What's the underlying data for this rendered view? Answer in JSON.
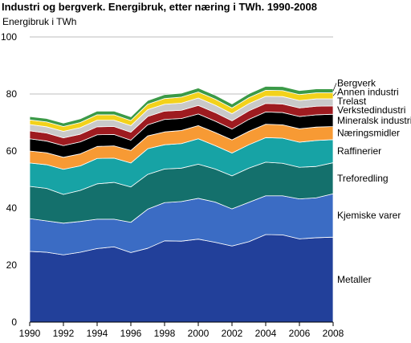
{
  "title": "Industri og bergverk. Energibruk, etter næring i TWh. 1990-2008",
  "chart_data": {
    "type": "area",
    "stacked": true,
    "title": "Industri og bergverk. Energibruk, etter næring i TWh. 1990-2008",
    "ylabel": "Energibruk i TWh",
    "xlabel": "",
    "ylim": [
      0,
      100
    ],
    "yticks": [
      "0",
      "20",
      "40",
      "60",
      "80",
      "100"
    ],
    "xticks": [
      "1990",
      "1992",
      "1994",
      "1996",
      "1998",
      "2000",
      "2002",
      "2004",
      "2006",
      "2008"
    ],
    "grid": true,
    "legend": "direct labels at right",
    "x": [
      1990,
      1991,
      1992,
      1993,
      1994,
      1995,
      1996,
      1997,
      1998,
      1999,
      2000,
      2001,
      2002,
      2003,
      2004,
      2005,
      2006,
      2007,
      2008
    ],
    "series": [
      {
        "name": "Metaller",
        "color": "#22409a",
        "values": [
          24.8,
          24.5,
          23.6,
          24.5,
          25.8,
          26.4,
          24.4,
          25.9,
          28.5,
          28.4,
          29.1,
          28.0,
          26.7,
          28.2,
          30.7,
          30.6,
          29.2,
          29.6,
          29.8
        ]
      },
      {
        "name": "Kjemiske varer",
        "color": "#3b6cc4",
        "values": [
          11.5,
          11.0,
          11.1,
          10.8,
          10.3,
          9.7,
          10.6,
          13.7,
          13.4,
          13.9,
          14.3,
          14.1,
          13.0,
          13.8,
          13.6,
          13.7,
          14.0,
          14.0,
          15.2
        ]
      },
      {
        "name": "Treforedling",
        "color": "#14706c",
        "values": [
          11.3,
          11.4,
          10.1,
          10.9,
          12.4,
          12.9,
          12.4,
          12.2,
          11.8,
          11.7,
          12.0,
          11.6,
          11.6,
          12.0,
          11.8,
          11.4,
          11.1,
          11.0,
          10.9
        ]
      },
      {
        "name": "Raffinerier",
        "color": "#17a3a5",
        "values": [
          8.2,
          8.3,
          8.8,
          8.6,
          8.9,
          8.5,
          8.4,
          9.0,
          8.5,
          8.6,
          8.9,
          8.2,
          8.0,
          8.2,
          8.6,
          8.8,
          8.8,
          9.1,
          8.1
        ]
      },
      {
        "name": "Næringsmidler",
        "color": "#f79a34",
        "values": [
          4.2,
          4.2,
          4.2,
          4.2,
          4.2,
          4.3,
          4.4,
          4.5,
          4.5,
          4.6,
          4.6,
          4.6,
          4.6,
          4.7,
          4.7,
          4.7,
          4.7,
          4.7,
          4.6
        ]
      },
      {
        "name": "Mineralsk industri",
        "color": "#000000",
        "values": [
          4.3,
          4.1,
          4.1,
          4.2,
          4.1,
          4.0,
          3.6,
          3.9,
          4.4,
          4.2,
          4.1,
          4.0,
          3.8,
          4.2,
          4.3,
          4.3,
          4.3,
          4.3,
          4.3
        ]
      },
      {
        "name": "Verkstedindustri",
        "color": "#9e1b20",
        "values": [
          2.8,
          2.8,
          2.7,
          2.7,
          2.8,
          2.8,
          2.8,
          2.9,
          2.9,
          2.9,
          3.0,
          3.0,
          2.9,
          3.0,
          3.0,
          3.0,
          3.0,
          3.0,
          2.9
        ]
      },
      {
        "name": "Trelast",
        "color": "#c9c9c9",
        "values": [
          2.2,
          2.2,
          2.3,
          2.3,
          2.3,
          2.2,
          2.3,
          2.4,
          2.4,
          2.5,
          2.6,
          2.6,
          2.5,
          2.5,
          2.5,
          2.6,
          2.6,
          2.6,
          2.5
        ]
      },
      {
        "name": "Annen industri",
        "color": "#f3d21b",
        "values": [
          1.6,
          1.7,
          1.7,
          1.8,
          1.9,
          1.9,
          1.8,
          1.9,
          2.0,
          2.1,
          2.1,
          2.1,
          2.0,
          2.1,
          2.1,
          2.1,
          2.1,
          2.1,
          2.1
        ]
      },
      {
        "name": "Bergverk",
        "color": "#3b9a47",
        "values": [
          1.2,
          1.2,
          1.2,
          1.3,
          1.3,
          1.3,
          1.3,
          1.3,
          1.4,
          1.4,
          1.4,
          1.4,
          1.4,
          1.4,
          1.4,
          1.4,
          1.4,
          1.4,
          1.4
        ]
      }
    ]
  }
}
